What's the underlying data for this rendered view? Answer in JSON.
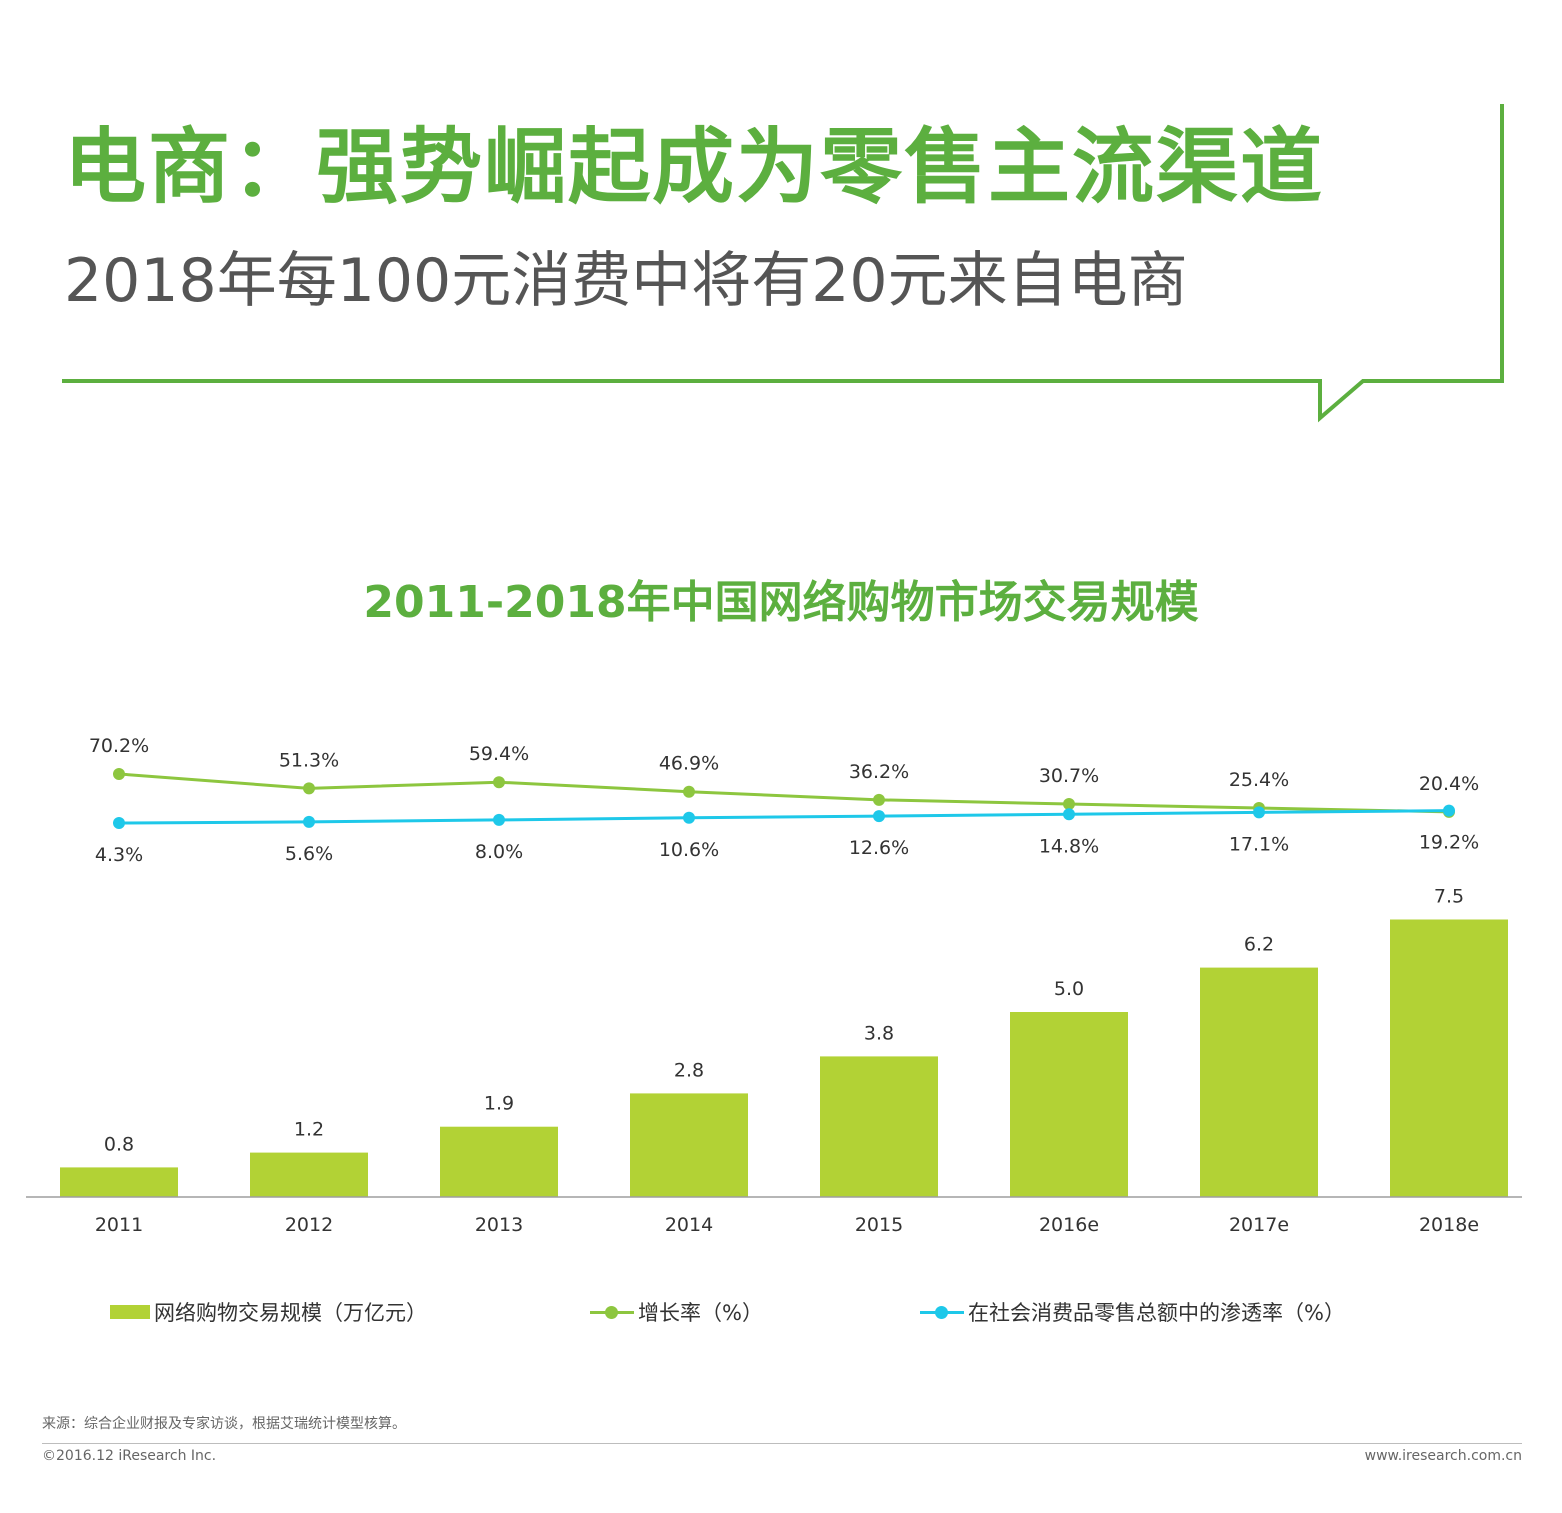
{
  "header": {
    "headline": "电商：强势崛起成为零售主流渠道",
    "subline": "2018年每100元消费中将有20元来自电商"
  },
  "colors": {
    "frame": "#5caf3f",
    "bars": "#b2d235",
    "growth": "#8dc63f",
    "penetration": "#1ec8e9",
    "axis": "#9e9e9e"
  },
  "chart_data": {
    "type": "bar",
    "title": "2011-2018年中国网络购物市场交易规模",
    "categories": [
      "2011",
      "2012",
      "2013",
      "2014",
      "2015",
      "2016e",
      "2017e",
      "2018e"
    ],
    "series": [
      {
        "name": "网络购物交易规模（万亿元）",
        "type": "bar",
        "values": [
          0.8,
          1.2,
          1.9,
          2.8,
          3.8,
          5.0,
          6.2,
          7.5
        ],
        "labels": [
          "0.8",
          "1.2",
          "1.9",
          "2.8",
          "3.8",
          "5.0",
          "6.2",
          "7.5"
        ]
      },
      {
        "name": "增长率（%）",
        "type": "line",
        "values": [
          70.2,
          51.3,
          59.4,
          46.9,
          36.2,
          30.7,
          25.4,
          20.4
        ],
        "labels": [
          "70.2%",
          "51.3%",
          "59.4%",
          "46.9%",
          "36.2%",
          "30.7%",
          "25.4%",
          "20.4%"
        ]
      },
      {
        "name": "在社会消费品零售总额中的渗透率（%）",
        "type": "line",
        "values": [
          4.3,
          5.6,
          8.0,
          10.6,
          12.6,
          14.8,
          17.1,
          19.2
        ],
        "labels": [
          "4.3%",
          "5.6%",
          "8.0%",
          "10.6%",
          "12.6%",
          "14.8%",
          "17.1%",
          "19.2%"
        ]
      }
    ],
    "grid": false,
    "legend": "bottom"
  },
  "footer": {
    "source": "来源：综合企业财报及专家访谈，根据艾瑞统计模型核算。",
    "copyright": "©2016.12 iResearch Inc.",
    "website": "www.iresearch.com.cn"
  }
}
